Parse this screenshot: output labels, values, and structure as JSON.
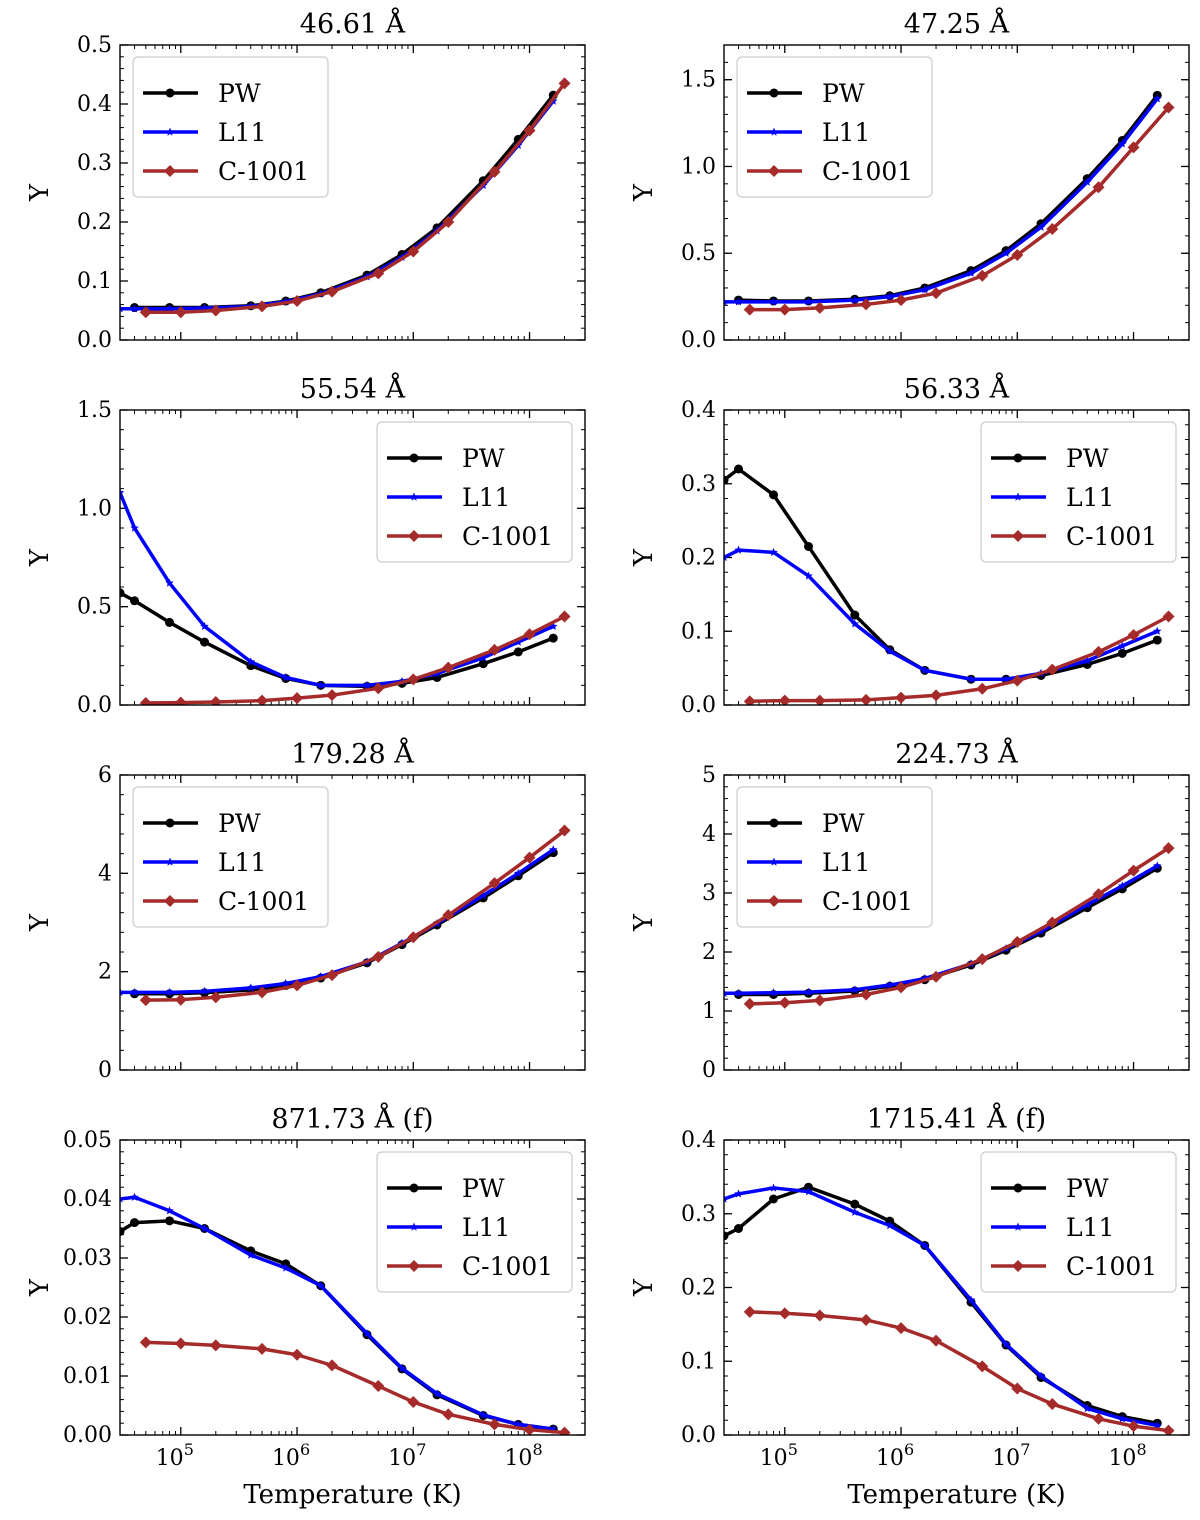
{
  "figure": {
    "xlabel": "Temperature (K)",
    "ylabel": "Y"
  },
  "x_ticks": [
    {
      "value": 100000,
      "base": "10",
      "exp": "5"
    },
    {
      "value": 1000000,
      "base": "10",
      "exp": "6"
    },
    {
      "value": 10000000,
      "base": "10",
      "exp": "7"
    },
    {
      "value": 100000000,
      "base": "10",
      "exp": "8"
    }
  ],
  "colors": {
    "PW": "#000000",
    "L11": "#0000ff",
    "C-1001": "#a52a2a"
  },
  "chart_data": [
    {
      "type": "line",
      "title": "46.61 Å",
      "xlabel": "",
      "ylabel": "Y",
      "x_scale": "log",
      "xlim": [
        30000,
        300000000
      ],
      "ylim": [
        0,
        0.5
      ],
      "yticks": [
        "0.0",
        "0.1",
        "0.2",
        "0.3",
        "0.4",
        "0.5"
      ],
      "ytick_values": [
        0,
        0.1,
        0.2,
        0.3,
        0.4,
        0.5
      ],
      "legend": "top-left",
      "series": [
        {
          "name": "PW",
          "marker": "circle",
          "x": [
            40000,
            80000,
            160000,
            400000,
            800000,
            1600000,
            4000000,
            8000000,
            16000000,
            40000000,
            80000000,
            160000000
          ],
          "y": [
            0.055,
            0.055,
            0.055,
            0.058,
            0.066,
            0.08,
            0.11,
            0.145,
            0.19,
            0.27,
            0.34,
            0.415
          ]
        },
        {
          "name": "L11",
          "marker": "star",
          "x": [
            30000,
            40000,
            80000,
            160000,
            400000,
            800000,
            1600000,
            4000000,
            8000000,
            16000000,
            40000000,
            80000000,
            160000000
          ],
          "y": [
            0.053,
            0.053,
            0.053,
            0.054,
            0.057,
            0.065,
            0.078,
            0.107,
            0.14,
            0.185,
            0.262,
            0.33,
            0.405
          ]
        },
        {
          "name": "C-1001",
          "marker": "diamond",
          "x": [
            50000,
            100000,
            200000,
            500000,
            1000000,
            2000000,
            5000000,
            10000000,
            20000000,
            50000000,
            100000000,
            200000000
          ],
          "y": [
            0.047,
            0.047,
            0.05,
            0.057,
            0.066,
            0.082,
            0.113,
            0.15,
            0.2,
            0.285,
            0.355,
            0.435
          ]
        }
      ]
    },
    {
      "type": "line",
      "title": "47.25 Å",
      "xlabel": "",
      "ylabel": "Y",
      "x_scale": "log",
      "xlim": [
        30000,
        300000000
      ],
      "ylim": [
        0,
        1.7
      ],
      "yticks": [
        "0.0",
        "0.5",
        "1.0",
        "1.5"
      ],
      "ytick_values": [
        0,
        0.5,
        1.0,
        1.5
      ],
      "legend": "top-left",
      "series": [
        {
          "name": "PW",
          "marker": "circle",
          "x": [
            40000,
            80000,
            160000,
            400000,
            800000,
            1600000,
            4000000,
            8000000,
            16000000,
            40000000,
            80000000,
            160000000
          ],
          "y": [
            0.23,
            0.225,
            0.225,
            0.235,
            0.255,
            0.3,
            0.4,
            0.515,
            0.67,
            0.93,
            1.15,
            1.41
          ]
        },
        {
          "name": "L11",
          "marker": "star",
          "x": [
            30000,
            40000,
            80000,
            160000,
            400000,
            800000,
            1600000,
            4000000,
            8000000,
            16000000,
            40000000,
            80000000,
            160000000
          ],
          "y": [
            0.22,
            0.22,
            0.22,
            0.22,
            0.23,
            0.25,
            0.29,
            0.385,
            0.5,
            0.65,
            0.91,
            1.13,
            1.39
          ]
        },
        {
          "name": "C-1001",
          "marker": "diamond",
          "x": [
            50000,
            100000,
            200000,
            500000,
            1000000,
            2000000,
            5000000,
            10000000,
            20000000,
            50000000,
            100000000,
            200000000
          ],
          "y": [
            0.175,
            0.175,
            0.185,
            0.205,
            0.23,
            0.27,
            0.37,
            0.49,
            0.64,
            0.88,
            1.11,
            1.34
          ]
        }
      ]
    },
    {
      "type": "line",
      "title": "55.54 Å",
      "xlabel": "",
      "ylabel": "Y",
      "x_scale": "log",
      "xlim": [
        30000,
        300000000
      ],
      "ylim": [
        0,
        1.5
      ],
      "yticks": [
        "0.0",
        "0.5",
        "1.0",
        "1.5"
      ],
      "ytick_values": [
        0,
        0.5,
        1.0,
        1.5
      ],
      "legend": "top-right",
      "series": [
        {
          "name": "PW",
          "marker": "circle",
          "x": [
            30000,
            40000,
            80000,
            160000,
            400000,
            800000,
            1600000,
            4000000,
            8000000,
            16000000,
            40000000,
            80000000,
            160000000
          ],
          "y": [
            0.57,
            0.53,
            0.42,
            0.32,
            0.2,
            0.135,
            0.1,
            0.095,
            0.11,
            0.14,
            0.21,
            0.27,
            0.34
          ]
        },
        {
          "name": "L11",
          "marker": "star",
          "x": [
            30000,
            40000,
            80000,
            160000,
            400000,
            800000,
            1600000,
            4000000,
            8000000,
            16000000,
            40000000,
            80000000,
            160000000
          ],
          "y": [
            1.08,
            0.9,
            0.62,
            0.4,
            0.22,
            0.14,
            0.1,
            0.1,
            0.12,
            0.16,
            0.24,
            0.32,
            0.4
          ]
        },
        {
          "name": "C-1001",
          "marker": "diamond",
          "x": [
            50000,
            100000,
            200000,
            500000,
            1000000,
            2000000,
            5000000,
            10000000,
            20000000,
            50000000,
            100000000,
            200000000
          ],
          "y": [
            0.01,
            0.012,
            0.015,
            0.022,
            0.035,
            0.05,
            0.085,
            0.13,
            0.19,
            0.28,
            0.36,
            0.45
          ]
        }
      ]
    },
    {
      "type": "line",
      "title": "56.33 Å",
      "xlabel": "",
      "ylabel": "Y",
      "x_scale": "log",
      "xlim": [
        30000,
        300000000
      ],
      "ylim": [
        0,
        0.4
      ],
      "yticks": [
        "0.0",
        "0.1",
        "0.2",
        "0.3",
        "0.4"
      ],
      "ytick_values": [
        0,
        0.1,
        0.2,
        0.3,
        0.4
      ],
      "legend": "top-right",
      "series": [
        {
          "name": "PW",
          "marker": "circle",
          "x": [
            30000,
            40000,
            80000,
            160000,
            400000,
            800000,
            1600000,
            4000000,
            8000000,
            16000000,
            40000000,
            80000000,
            160000000
          ],
          "y": [
            0.305,
            0.32,
            0.285,
            0.215,
            0.122,
            0.075,
            0.047,
            0.035,
            0.035,
            0.04,
            0.055,
            0.07,
            0.088
          ]
        },
        {
          "name": "L11",
          "marker": "star",
          "x": [
            30000,
            40000,
            80000,
            160000,
            400000,
            800000,
            1600000,
            4000000,
            8000000,
            16000000,
            40000000,
            80000000,
            160000000
          ],
          "y": [
            0.2,
            0.21,
            0.207,
            0.175,
            0.11,
            0.073,
            0.047,
            0.035,
            0.035,
            0.043,
            0.06,
            0.08,
            0.1
          ]
        },
        {
          "name": "C-1001",
          "marker": "diamond",
          "x": [
            50000,
            100000,
            200000,
            500000,
            1000000,
            2000000,
            5000000,
            10000000,
            20000000,
            50000000,
            100000000,
            200000000
          ],
          "y": [
            0.005,
            0.006,
            0.006,
            0.007,
            0.01,
            0.013,
            0.022,
            0.033,
            0.048,
            0.072,
            0.095,
            0.12
          ]
        }
      ]
    },
    {
      "type": "line",
      "title": "179.28 Å",
      "xlabel": "",
      "ylabel": "Y",
      "x_scale": "log",
      "xlim": [
        30000,
        300000000
      ],
      "ylim": [
        0,
        6
      ],
      "yticks": [
        "0",
        "2",
        "4",
        "6"
      ],
      "ytick_values": [
        0,
        2,
        4,
        6
      ],
      "legend": "top-left",
      "series": [
        {
          "name": "PW",
          "marker": "circle",
          "x": [
            40000,
            80000,
            160000,
            400000,
            800000,
            1600000,
            4000000,
            8000000,
            16000000,
            40000000,
            80000000,
            160000000
          ],
          "y": [
            1.55,
            1.55,
            1.57,
            1.63,
            1.72,
            1.87,
            2.18,
            2.55,
            2.95,
            3.5,
            3.95,
            4.42
          ]
        },
        {
          "name": "L11",
          "marker": "star",
          "x": [
            30000,
            40000,
            80000,
            160000,
            400000,
            800000,
            1600000,
            4000000,
            8000000,
            16000000,
            40000000,
            80000000,
            160000000
          ],
          "y": [
            1.58,
            1.58,
            1.58,
            1.6,
            1.67,
            1.76,
            1.9,
            2.2,
            2.58,
            2.98,
            3.55,
            4.0,
            4.48
          ]
        },
        {
          "name": "C-1001",
          "marker": "diamond",
          "x": [
            50000,
            100000,
            200000,
            500000,
            1000000,
            2000000,
            5000000,
            10000000,
            20000000,
            50000000,
            100000000,
            200000000
          ],
          "y": [
            1.42,
            1.43,
            1.48,
            1.58,
            1.72,
            1.93,
            2.3,
            2.7,
            3.15,
            3.8,
            4.32,
            4.87
          ]
        }
      ]
    },
    {
      "type": "line",
      "title": "224.73 Å",
      "xlabel": "",
      "ylabel": "Y",
      "x_scale": "log",
      "xlim": [
        30000,
        300000000
      ],
      "ylim": [
        0,
        5
      ],
      "yticks": [
        "0",
        "1",
        "2",
        "3",
        "4",
        "5"
      ],
      "ytick_values": [
        0,
        1,
        2,
        3,
        4,
        5
      ],
      "legend": "top-left",
      "series": [
        {
          "name": "PW",
          "marker": "circle",
          "x": [
            40000,
            80000,
            160000,
            400000,
            800000,
            1600000,
            4000000,
            8000000,
            16000000,
            40000000,
            80000000,
            160000000
          ],
          "y": [
            1.28,
            1.28,
            1.3,
            1.34,
            1.42,
            1.53,
            1.78,
            2.03,
            2.32,
            2.75,
            3.07,
            3.42
          ]
        },
        {
          "name": "L11",
          "marker": "star",
          "x": [
            30000,
            40000,
            80000,
            160000,
            400000,
            800000,
            1600000,
            4000000,
            8000000,
            16000000,
            40000000,
            80000000,
            160000000
          ],
          "y": [
            1.3,
            1.3,
            1.31,
            1.32,
            1.36,
            1.44,
            1.55,
            1.8,
            2.06,
            2.35,
            2.8,
            3.12,
            3.46
          ]
        },
        {
          "name": "C-1001",
          "marker": "diamond",
          "x": [
            50000,
            100000,
            200000,
            500000,
            1000000,
            2000000,
            5000000,
            10000000,
            20000000,
            50000000,
            100000000,
            200000000
          ],
          "y": [
            1.12,
            1.14,
            1.18,
            1.28,
            1.4,
            1.58,
            1.88,
            2.17,
            2.5,
            2.98,
            3.38,
            3.76
          ]
        }
      ]
    },
    {
      "type": "line",
      "title": "871.73 Å (f)",
      "xlabel": "Temperature (K)",
      "ylabel": "Y",
      "x_scale": "log",
      "xlim": [
        30000,
        300000000
      ],
      "ylim": [
        0,
        0.05
      ],
      "yticks": [
        "0.00",
        "0.01",
        "0.02",
        "0.03",
        "0.04",
        "0.05"
      ],
      "ytick_values": [
        0,
        0.01,
        0.02,
        0.03,
        0.04,
        0.05
      ],
      "legend": "top-right",
      "series": [
        {
          "name": "PW",
          "marker": "circle",
          "x": [
            30000,
            40000,
            80000,
            160000,
            400000,
            800000,
            1600000,
            4000000,
            8000000,
            16000000,
            40000000,
            80000000,
            160000000
          ],
          "y": [
            0.0345,
            0.036,
            0.0363,
            0.035,
            0.0312,
            0.029,
            0.0253,
            0.017,
            0.0112,
            0.0068,
            0.0033,
            0.0018,
            0.001
          ]
        },
        {
          "name": "L11",
          "marker": "star",
          "x": [
            30000,
            40000,
            80000,
            160000,
            400000,
            800000,
            1600000,
            4000000,
            8000000,
            16000000,
            40000000,
            80000000,
            160000000
          ],
          "y": [
            0.04,
            0.0403,
            0.038,
            0.035,
            0.0305,
            0.0283,
            0.0253,
            0.0172,
            0.0113,
            0.007,
            0.0034,
            0.0018,
            0.001
          ]
        },
        {
          "name": "C-1001",
          "marker": "diamond",
          "x": [
            50000,
            100000,
            200000,
            500000,
            1000000,
            2000000,
            5000000,
            10000000,
            20000000,
            50000000,
            100000000,
            200000000
          ],
          "y": [
            0.0157,
            0.0155,
            0.0152,
            0.0146,
            0.0136,
            0.0118,
            0.0083,
            0.0056,
            0.0035,
            0.0018,
            0.0009,
            0.0004
          ]
        }
      ]
    },
    {
      "type": "line",
      "title": "1715.41 Å (f)",
      "xlabel": "Temperature (K)",
      "ylabel": "Y",
      "x_scale": "log",
      "xlim": [
        30000,
        300000000
      ],
      "ylim": [
        0,
        0.4
      ],
      "yticks": [
        "0.0",
        "0.1",
        "0.2",
        "0.3",
        "0.4"
      ],
      "ytick_values": [
        0,
        0.1,
        0.2,
        0.3,
        0.4
      ],
      "legend": "top-right",
      "series": [
        {
          "name": "PW",
          "marker": "circle",
          "x": [
            30000,
            40000,
            80000,
            160000,
            400000,
            800000,
            1600000,
            4000000,
            8000000,
            16000000,
            40000000,
            80000000,
            160000000
          ],
          "y": [
            0.27,
            0.28,
            0.32,
            0.336,
            0.313,
            0.29,
            0.257,
            0.18,
            0.122,
            0.078,
            0.04,
            0.025,
            0.016
          ]
        },
        {
          "name": "L11",
          "marker": "star",
          "x": [
            30000,
            40000,
            80000,
            160000,
            400000,
            800000,
            1600000,
            4000000,
            8000000,
            16000000,
            40000000,
            80000000,
            160000000
          ],
          "y": [
            0.32,
            0.327,
            0.335,
            0.33,
            0.302,
            0.284,
            0.257,
            0.183,
            0.123,
            0.08,
            0.036,
            0.022,
            0.013
          ]
        },
        {
          "name": "C-1001",
          "marker": "diamond",
          "x": [
            50000,
            100000,
            200000,
            500000,
            1000000,
            2000000,
            5000000,
            10000000,
            20000000,
            50000000,
            100000000,
            200000000
          ],
          "y": [
            0.167,
            0.165,
            0.162,
            0.156,
            0.145,
            0.128,
            0.093,
            0.063,
            0.042,
            0.022,
            0.012,
            0.006
          ]
        }
      ]
    }
  ]
}
